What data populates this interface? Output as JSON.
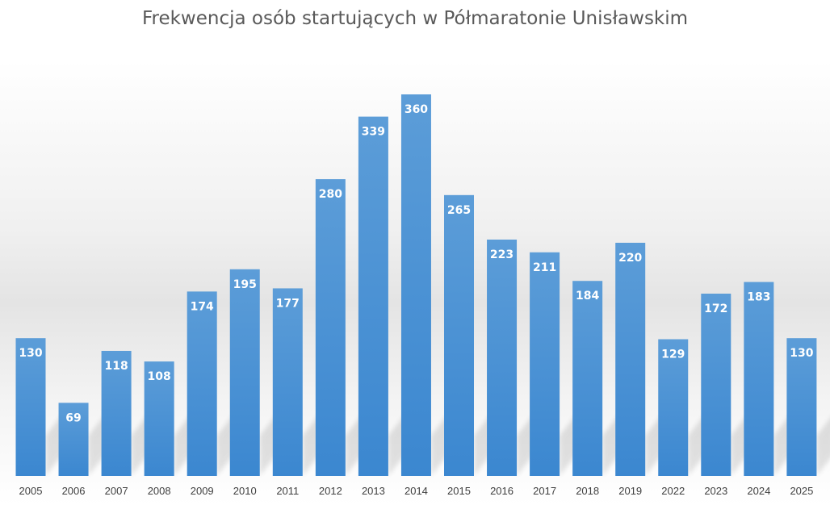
{
  "chart_data": {
    "type": "bar",
    "title": "Frekwencja osób startujących w Półmaratonie Unisławskim",
    "xlabel": "",
    "ylabel": "",
    "categories": [
      "2005",
      "2006",
      "2007",
      "2008",
      "2009",
      "2010",
      "2011",
      "2012",
      "2013",
      "2014",
      "2015",
      "2016",
      "2017",
      "2018",
      "2019",
      "2022",
      "2023",
      "2024",
      "2025"
    ],
    "values": [
      130,
      69,
      118,
      108,
      174,
      195,
      177,
      280,
      339,
      360,
      265,
      223,
      211,
      184,
      220,
      129,
      172,
      183,
      130
    ],
    "ylim": [
      0,
      360
    ],
    "grid": false,
    "legend": "none",
    "data_labels": true,
    "colors": {
      "bar_top": "#5b9bd5",
      "bar_bottom": "#3a86d0",
      "data_label": "#ffffff",
      "title": "#595959",
      "tick": "#404040"
    }
  }
}
